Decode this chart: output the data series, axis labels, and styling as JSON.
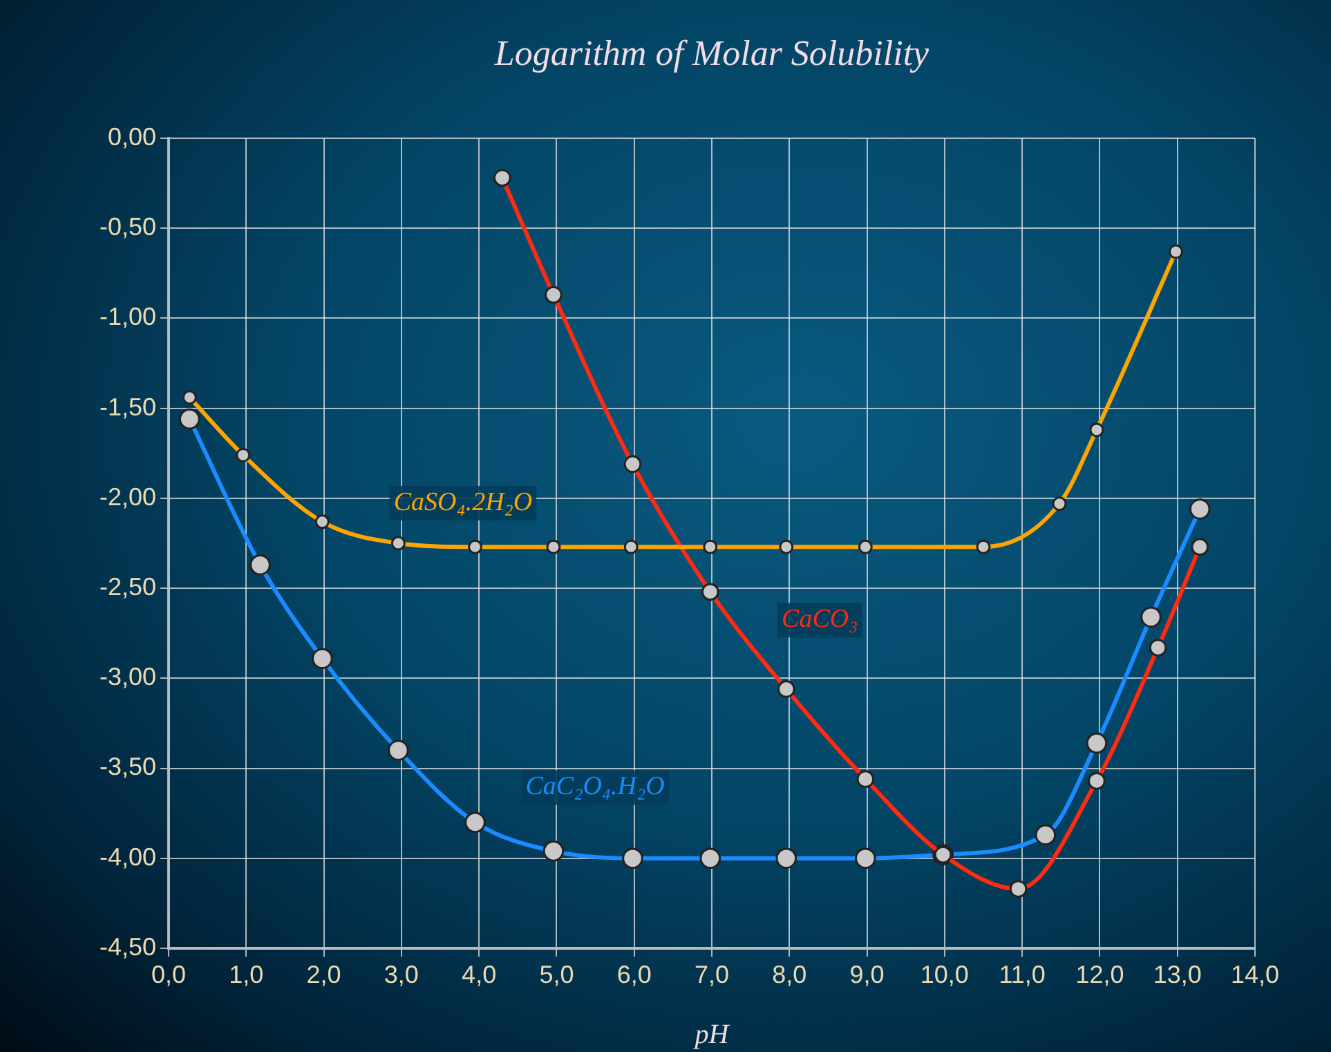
{
  "chart_data": {
    "type": "line",
    "title": "Logarithm of Molar Solubility",
    "xlabel": "pH",
    "xlim": [
      0,
      14
    ],
    "xticks": [
      {
        "value": 0,
        "label": "0,0"
      },
      {
        "value": 1,
        "label": "1,0"
      },
      {
        "value": 2,
        "label": "2,0"
      },
      {
        "value": 3,
        "label": "3,0"
      },
      {
        "value": 4,
        "label": "4,0"
      },
      {
        "value": 5,
        "label": "5,0"
      },
      {
        "value": 6,
        "label": "6,0"
      },
      {
        "value": 7,
        "label": "7,0"
      },
      {
        "value": 8,
        "label": "8,0"
      },
      {
        "value": 9,
        "label": "9,0"
      },
      {
        "value": 10,
        "label": "10,0"
      },
      {
        "value": 11,
        "label": "11,0"
      },
      {
        "value": 12,
        "label": "12,0"
      },
      {
        "value": 13,
        "label": "13,0"
      },
      {
        "value": 14,
        "label": "14,0"
      }
    ],
    "ylim": [
      -4.5,
      0
    ],
    "yticks": [
      {
        "value": 0,
        "label": "0,00"
      },
      {
        "value": -0.5,
        "label": "-0,50"
      },
      {
        "value": -1,
        "label": "-1,00"
      },
      {
        "value": -1.5,
        "label": "-1,50"
      },
      {
        "value": -2,
        "label": "-2,00"
      },
      {
        "value": -2.5,
        "label": "-2,50"
      },
      {
        "value": -3,
        "label": "-3,00"
      },
      {
        "value": -3.5,
        "label": "-3,50"
      },
      {
        "value": -4,
        "label": "-4,00"
      },
      {
        "value": -4.5,
        "label": "-4,50"
      }
    ],
    "grid": true,
    "legend": false,
    "marker": "circle",
    "line_style": "solid",
    "series": [
      {
        "name": "CaSO₄.2H₂O",
        "color": "#ffa500",
        "x": [
          0.27,
          0.96,
          1.98,
          2.96,
          3.95,
          4.96,
          5.96,
          6.98,
          7.96,
          8.98,
          10.5,
          11.48,
          11.96,
          12.98
        ],
        "values": [
          -1.44,
          -1.76,
          -2.13,
          -2.25,
          -2.27,
          -2.27,
          -2.27,
          -2.27,
          -2.27,
          -2.27,
          -2.27,
          -2.03,
          -1.62,
          -0.63
        ]
      },
      {
        "name": "CaCO₃",
        "color": "#ff2a10",
        "x": [
          4.3,
          4.96,
          5.98,
          6.98,
          7.96,
          8.98,
          9.98,
          10.95,
          11.96,
          12.75,
          13.29
        ],
        "values": [
          -0.22,
          -0.87,
          -1.81,
          -2.52,
          -3.06,
          -3.56,
          -3.98,
          -4.17,
          -3.57,
          -2.83,
          -2.27
        ]
      },
      {
        "name": "CaC₂O₄.H₂O",
        "color": "#1a8cff",
        "x": [
          0.27,
          1.18,
          1.98,
          2.96,
          3.95,
          4.96,
          5.98,
          6.98,
          7.96,
          8.98,
          9.98,
          11.3,
          11.96,
          12.66,
          13.29
        ],
        "values": [
          -1.56,
          -2.37,
          -2.89,
          -3.4,
          -3.8,
          -3.96,
          -4,
          -4,
          -4,
          -4,
          -3.98,
          -3.87,
          -3.36,
          -2.66,
          -2.06
        ]
      }
    ]
  }
}
